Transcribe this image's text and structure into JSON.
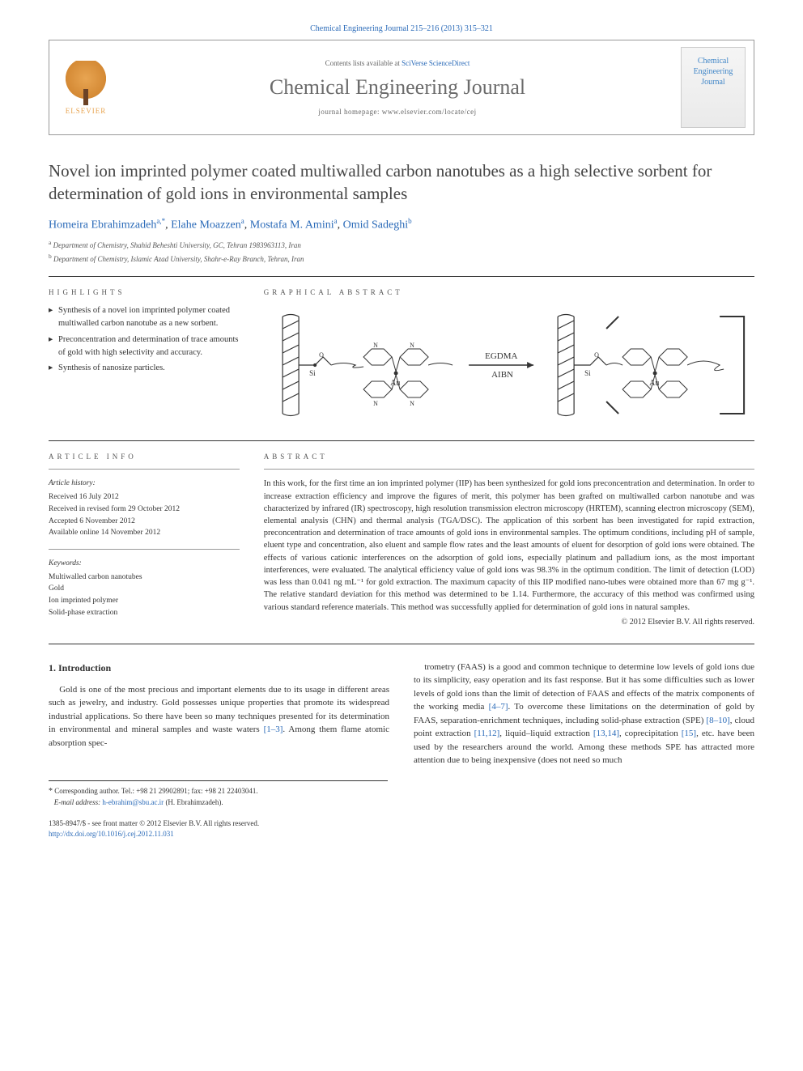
{
  "citation": "Chemical Engineering Journal 215–216 (2013) 315–321",
  "header": {
    "publisher_name": "ELSEVIER",
    "contents_prefix": "Contents lists available at ",
    "contents_link": "SciVerse ScienceDirect",
    "journal_name": "Chemical Engineering Journal",
    "homepage_label": "journal homepage: www.elsevier.com/locate/cej",
    "cover_text": "Chemical Engineering Journal"
  },
  "title": "Novel ion imprinted polymer coated multiwalled carbon nanotubes as a high selective sorbent for determination of gold ions in environmental samples",
  "authors_html": "Homeira Ebrahimzadeh <sup>a,*</sup>, Elahe Moazzen <sup>a</sup>, Mostafa M. Amini <sup>a</sup>, Omid Sadeghi <sup>b</sup>",
  "affiliations": [
    {
      "marker": "a",
      "text": "Department of Chemistry, Shahid Beheshti University, GC, Tehran 1983963113, Iran"
    },
    {
      "marker": "b",
      "text": "Department of Chemistry, Islamic Azad University, Shahr-e-Ray Branch, Tehran, Iran"
    }
  ],
  "highlights_heading": "HIGHLIGHTS",
  "highlights": [
    "Synthesis of a novel ion imprinted polymer coated multiwalled carbon nanotube as a new sorbent.",
    "Preconcentration and determination of trace amounts of gold with high selectivity and accuracy.",
    "Synthesis of nanosize particles."
  ],
  "graphical_heading": "GRAPHICAL ABSTRACT",
  "graphical": {
    "arrow_label": "EGDMA\nAIBN",
    "colors": {
      "line": "#333333",
      "bg": "#ffffff"
    }
  },
  "article_info_heading": "ARTICLE INFO",
  "article_history_label": "Article history:",
  "article_history": [
    "Received 16 July 2012",
    "Received in revised form 29 October 2012",
    "Accepted 6 November 2012",
    "Available online 14 November 2012"
  ],
  "keywords_label": "Keywords:",
  "keywords": [
    "Multiwalled carbon nanotubes",
    "Gold",
    "Ion imprinted polymer",
    "Solid-phase extraction"
  ],
  "abstract_heading": "ABSTRACT",
  "abstract": "In this work, for the first time an ion imprinted polymer (IIP) has been synthesized for gold ions preconcentration and determination. In order to increase extraction efficiency and improve the figures of merit, this polymer has been grafted on multiwalled carbon nanotube and was characterized by infrared (IR) spectroscopy, high resolution transmission electron microscopy (HRTEM), scanning electron microscopy (SEM), elemental analysis (CHN) and thermal analysis (TGA/DSC). The application of this sorbent has been investigated for rapid extraction, preconcentration and determination of trace amounts of gold ions in environmental samples. The optimum conditions, including pH of sample, eluent type and concentration, also eluent and sample flow rates and the least amounts of eluent for desorption of gold ions were obtained. The effects of various cationic interferences on the adsorption of gold ions, especially platinum and palladium ions, as the most important interferences, were evaluated. The analytical efficiency value of gold ions was 98.3% in the optimum condition. The limit of detection (LOD) was less than 0.041 ng mL⁻¹ for gold extraction. The maximum capacity of this IIP modified nano-tubes were obtained more than 67 mg g⁻¹. The relative standard deviation for this method was determined to be 1.14. Furthermore, the accuracy of this method was confirmed using various standard reference materials. This method was successfully applied for determination of gold ions in natural samples.",
  "copyright": "© 2012 Elsevier B.V. All rights reserved.",
  "intro_heading": "1. Introduction",
  "intro_para1": "Gold is one of the most precious and important elements due to its usage in different areas such as jewelry, and industry. Gold possesses unique properties that promote its widespread industrial applications. So there have been so many techniques presented for its determination in environmental and mineral samples and waste waters [1–3]. Among them flame atomic absorption spec-",
  "intro_para2": "trometry (FAAS) is a good and common technique to determine low levels of gold ions due to its simplicity, easy operation and its fast response. But it has some difficulties such as lower levels of gold ions than the limit of detection of FAAS and effects of the matrix components of the working media [4–7]. To overcome these limitations on the determination of gold by FAAS, separation-enrichment techniques, including solid-phase extraction (SPE) [8–10], cloud point extraction [11,12], liquid–liquid extraction [13,14], coprecipitation [15], etc. have been used by the researchers around the world. Among these methods SPE has attracted more attention due to being inexpensive (does not need so much",
  "footnote": {
    "corresponding": "Corresponding author. Tel.: +98 21 29902891; fax: +98 21 22403041.",
    "email_label": "E-mail address:",
    "email": "h-ebrahim@sbu.ac.ir",
    "email_owner": "(H. Ebrahimzadeh)."
  },
  "footer": {
    "line1": "1385-8947/$ - see front matter © 2012 Elsevier B.V. All rights reserved.",
    "doi": "http://dx.doi.org/10.1016/j.cej.2012.11.031"
  },
  "colors": {
    "link": "#2a6ab8",
    "text": "#333333",
    "rule": "#333333",
    "heading_gray": "#555555",
    "masthead_gray": "#6b6b6b"
  },
  "fonts": {
    "body_family": "Georgia, 'Times New Roman', serif",
    "title_size_pt": 21,
    "masthead_size_pt": 26,
    "body_size_pt": 11,
    "abstract_size_pt": 10.5,
    "small_size_pt": 9
  }
}
